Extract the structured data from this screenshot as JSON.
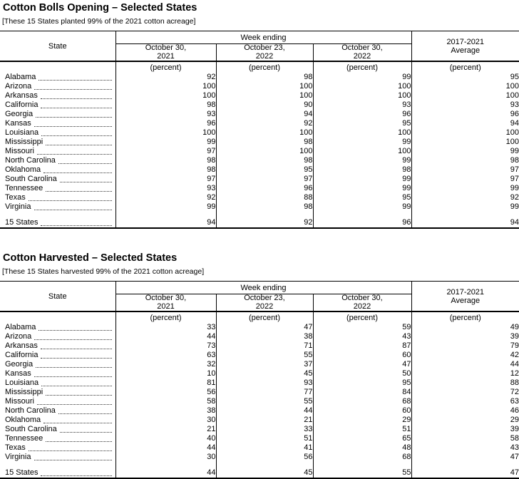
{
  "page": {
    "background": "#ffffff",
    "text_color": "#000000",
    "rule_color": "#000000"
  },
  "tables": [
    {
      "title": "Cotton Bolls Opening – Selected States",
      "subtitle": "[These 15 States planted 99% of the 2021 cotton acreage]",
      "header": {
        "state": "State",
        "week_ending": "Week ending",
        "date_columns": [
          "October 30,\n2021",
          "October 23,\n2022",
          "October 30,\n2022"
        ],
        "average": "2017-2021\nAverage",
        "unit": "(percent)"
      },
      "rows": [
        {
          "state": "Alabama",
          "values": [
            92,
            98,
            99,
            95
          ]
        },
        {
          "state": "Arizona",
          "values": [
            100,
            100,
            100,
            100
          ]
        },
        {
          "state": "Arkansas",
          "values": [
            100,
            100,
            100,
            100
          ]
        },
        {
          "state": "California",
          "values": [
            98,
            90,
            93,
            93
          ]
        },
        {
          "state": "Georgia",
          "values": [
            93,
            94,
            96,
            96
          ]
        },
        {
          "state": "Kansas",
          "values": [
            96,
            92,
            95,
            94
          ]
        },
        {
          "state": "Louisiana",
          "values": [
            100,
            100,
            100,
            100
          ]
        },
        {
          "state": "Mississippi",
          "values": [
            99,
            98,
            99,
            100
          ]
        },
        {
          "state": "Missouri",
          "values": [
            97,
            100,
            100,
            99
          ]
        },
        {
          "state": "North Carolina",
          "values": [
            98,
            98,
            99,
            98
          ]
        },
        {
          "state": "Oklahoma",
          "values": [
            98,
            95,
            98,
            97
          ]
        },
        {
          "state": "South Carolina",
          "values": [
            97,
            97,
            99,
            97
          ]
        },
        {
          "state": "Tennessee",
          "values": [
            93,
            96,
            99,
            99
          ]
        },
        {
          "state": "Texas",
          "values": [
            92,
            88,
            95,
            92
          ]
        },
        {
          "state": "Virginia",
          "values": [
            99,
            98,
            99,
            99
          ]
        }
      ],
      "total": {
        "state": "15 States",
        "values": [
          94,
          92,
          96,
          94
        ]
      }
    },
    {
      "title": "Cotton Harvested – Selected States",
      "subtitle": "[These 15 States harvested 99% of the 2021 cotton acreage]",
      "header": {
        "state": "State",
        "week_ending": "Week ending",
        "date_columns": [
          "October 30,\n2021",
          "October 23,\n2022",
          "October 30,\n2022"
        ],
        "average": "2017-2021\nAverage",
        "unit": "(percent)"
      },
      "rows": [
        {
          "state": "Alabama",
          "values": [
            33,
            47,
            59,
            49
          ]
        },
        {
          "state": "Arizona",
          "values": [
            44,
            38,
            43,
            39
          ]
        },
        {
          "state": "Arkansas",
          "values": [
            73,
            71,
            87,
            79
          ]
        },
        {
          "state": "California",
          "values": [
            63,
            55,
            60,
            42
          ]
        },
        {
          "state": "Georgia",
          "values": [
            32,
            37,
            47,
            44
          ]
        },
        {
          "state": "Kansas",
          "values": [
            10,
            45,
            50,
            12
          ]
        },
        {
          "state": "Louisiana",
          "values": [
            81,
            93,
            95,
            88
          ]
        },
        {
          "state": "Mississippi",
          "values": [
            56,
            77,
            84,
            72
          ]
        },
        {
          "state": "Missouri",
          "values": [
            58,
            55,
            68,
            63
          ]
        },
        {
          "state": "North Carolina",
          "values": [
            38,
            44,
            60,
            46
          ]
        },
        {
          "state": "Oklahoma",
          "values": [
            30,
            21,
            29,
            29
          ]
        },
        {
          "state": "South Carolina",
          "values": [
            21,
            33,
            51,
            39
          ]
        },
        {
          "state": "Tennessee",
          "values": [
            40,
            51,
            65,
            58
          ]
        },
        {
          "state": "Texas",
          "values": [
            44,
            41,
            48,
            43
          ]
        },
        {
          "state": "Virginia",
          "values": [
            30,
            56,
            68,
            47
          ]
        }
      ],
      "total": {
        "state": "15 States",
        "values": [
          44,
          45,
          55,
          47
        ]
      }
    }
  ]
}
